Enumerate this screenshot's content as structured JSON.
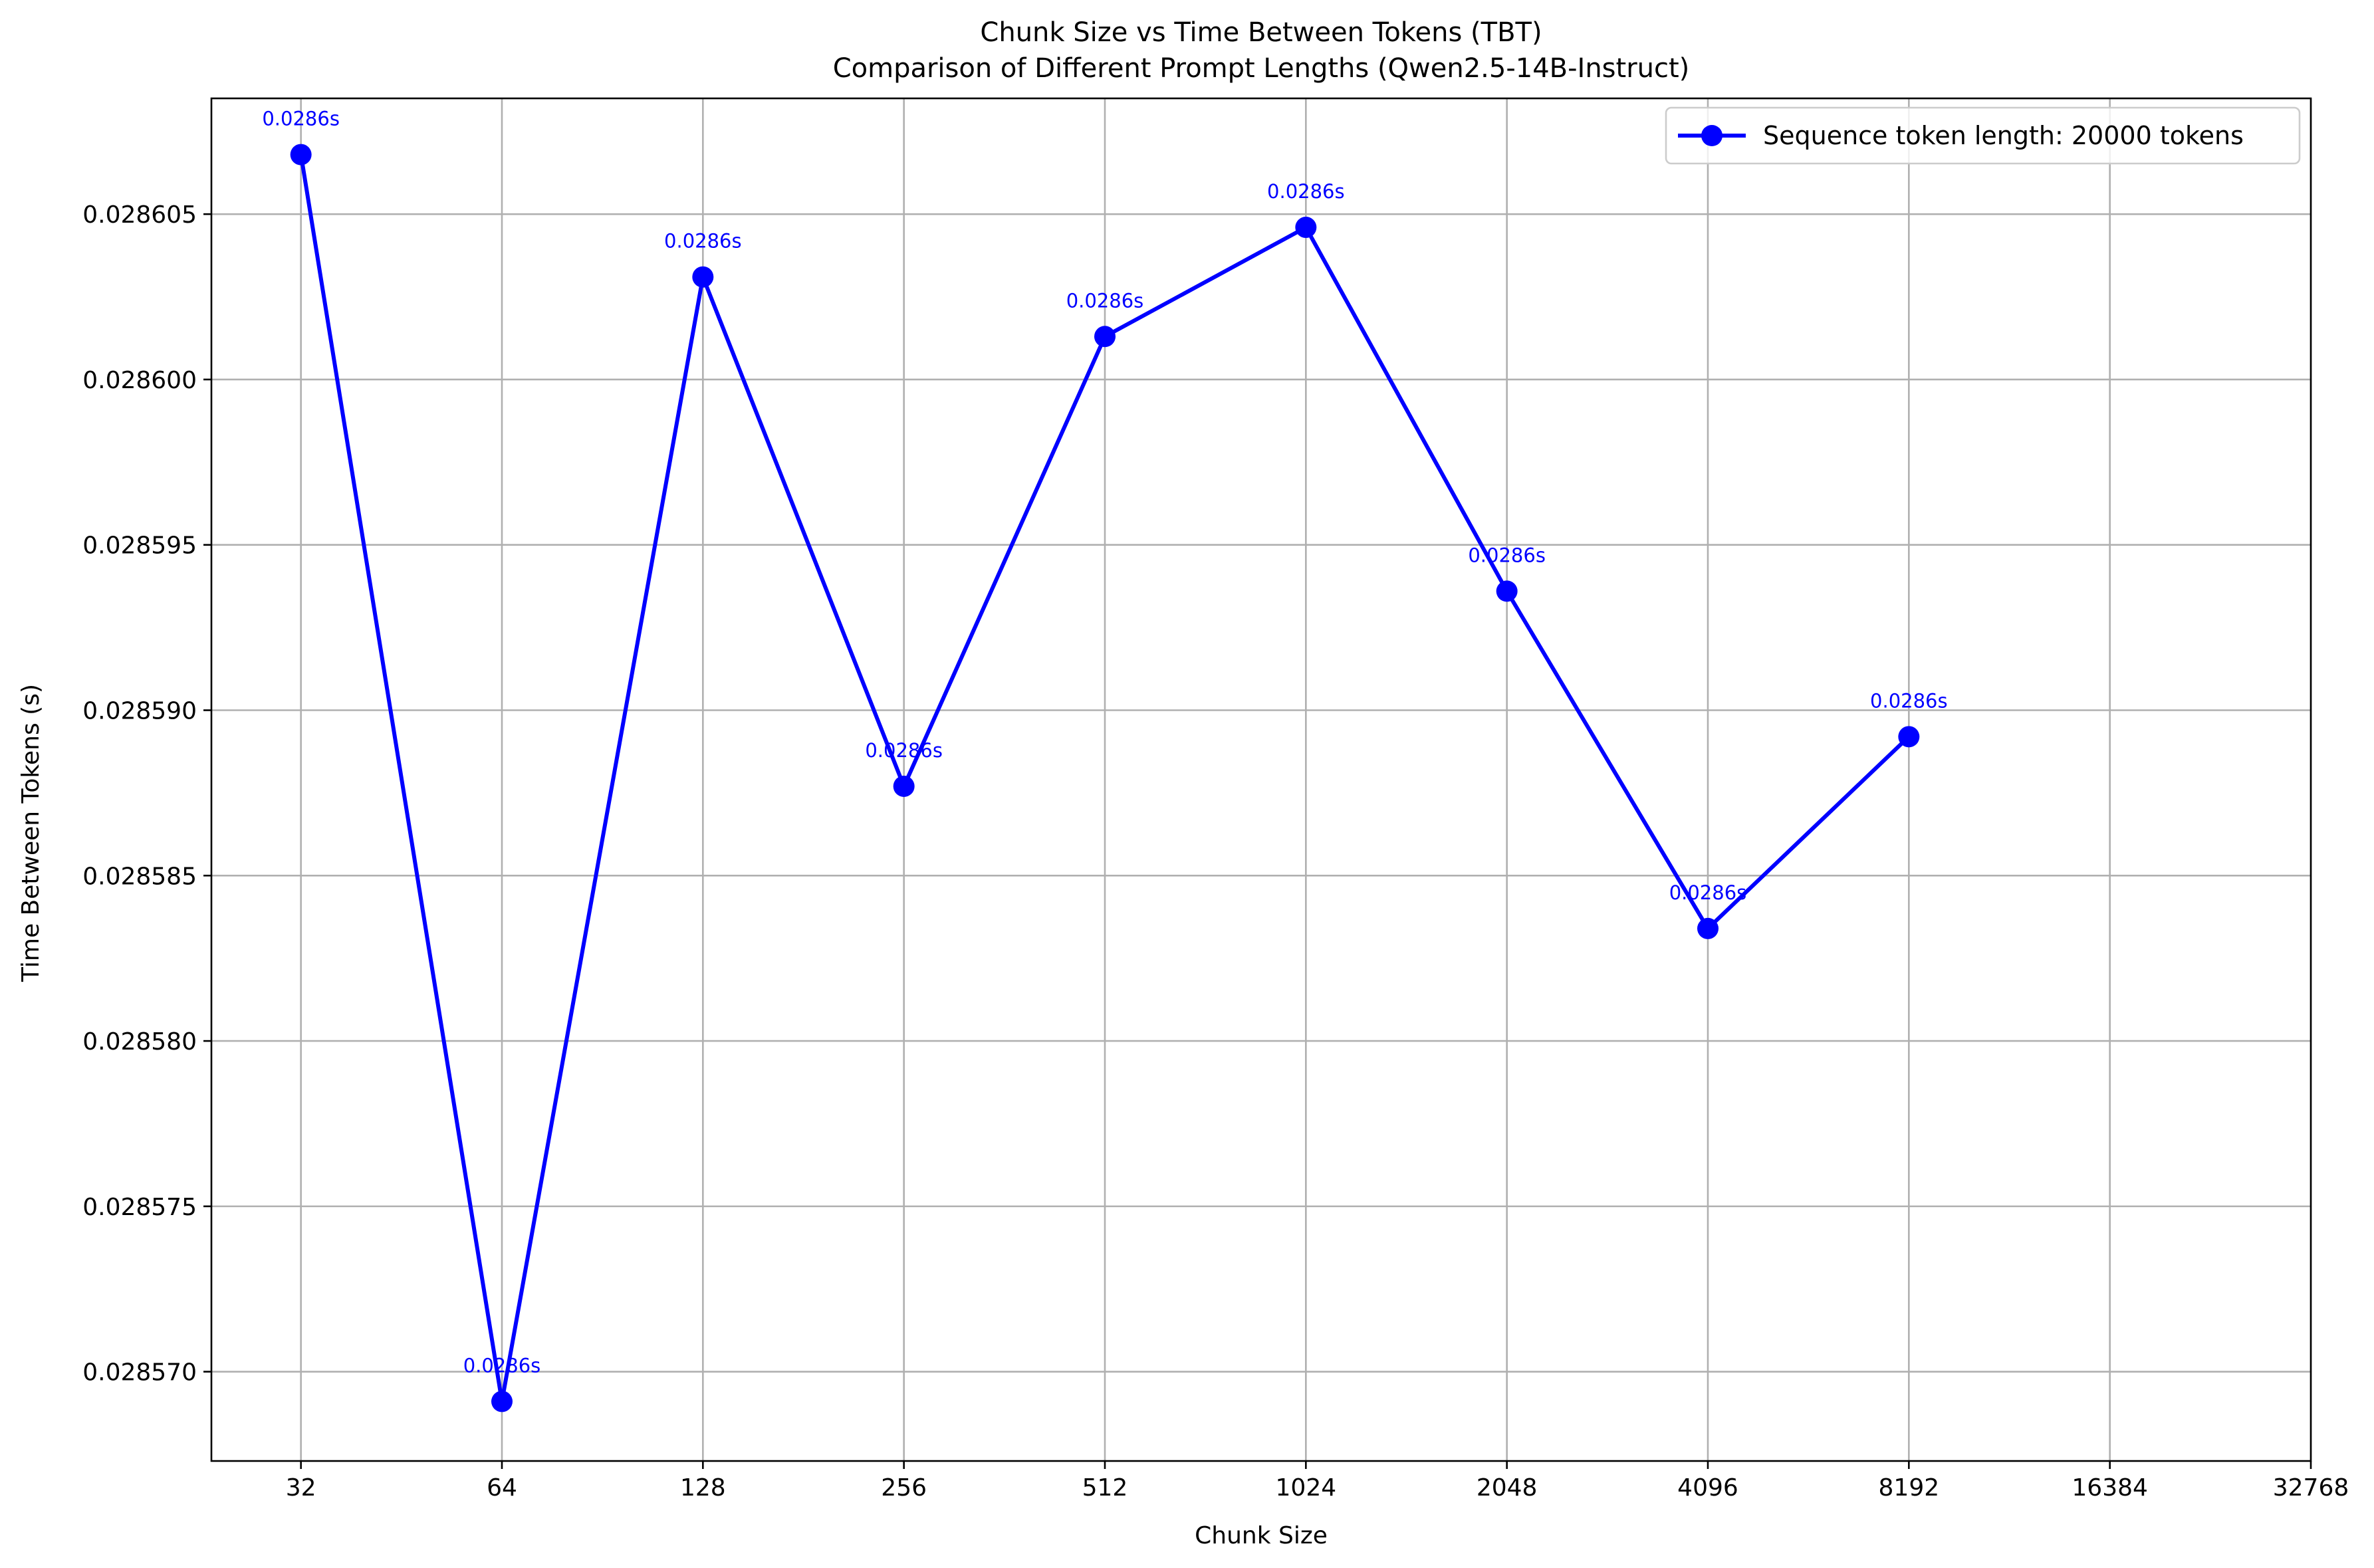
{
  "chart_data": {
    "type": "line",
    "title": "Chunk Size vs Time Between Tokens (TBT)",
    "subtitle": "Comparison of Different Prompt Lengths (Qwen2.5-14B-Instruct)",
    "xlabel": "Chunk Size",
    "ylabel": "Time Between Tokens (s)",
    "x_scale": "log2",
    "xlim": [
      23.5,
      32768
    ],
    "ylim": [
      0.0285673,
      0.0286085
    ],
    "x_ticks": [
      "32",
      "64",
      "128",
      "256",
      "512",
      "1024",
      "2048",
      "4096",
      "8192",
      "16384",
      "32768"
    ],
    "y_ticks": [
      "0.028570",
      "0.028575",
      "0.028580",
      "0.028585",
      "0.028590",
      "0.028595",
      "0.028600",
      "0.028605"
    ],
    "grid": true,
    "legend_position": "top-right",
    "series": [
      {
        "name": "Sequence token length: 20000 tokens",
        "color": "#0000ff",
        "marker": "circle",
        "x": [
          32,
          64,
          128,
          256,
          512,
          1024,
          2048,
          4096,
          8192
        ],
        "y": [
          0.0286068,
          0.0285691,
          0.0286031,
          0.0285877,
          0.0286013,
          0.0286046,
          0.0285936,
          0.0285834,
          0.0285892
        ],
        "labels": [
          "0.0286s",
          "0.0286s",
          "0.0286s",
          "0.0286s",
          "0.0286s",
          "0.0286s",
          "0.0286s",
          "0.0286s",
          "0.0286s"
        ]
      }
    ]
  }
}
